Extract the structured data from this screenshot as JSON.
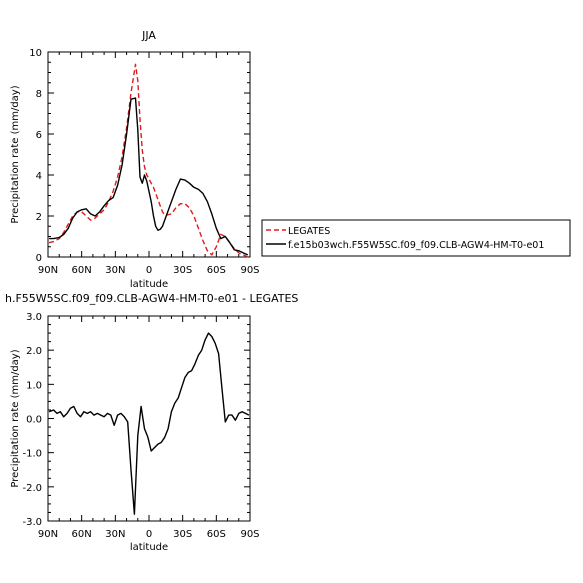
{
  "chart_data": [
    {
      "type": "line",
      "title": "JJA",
      "xlabel": "latitude",
      "ylabel": "Precipitation rate (mm/day)",
      "xlim": [
        90,
        -90
      ],
      "ylim": [
        0,
        10
      ],
      "x_ticks": [
        90,
        60,
        30,
        0,
        -30,
        -60,
        -90
      ],
      "x_tick_labels": [
        "90N",
        "60N",
        "30N",
        "0",
        "30S",
        "60S",
        "90S"
      ],
      "y_ticks": [
        0,
        2,
        4,
        6,
        8,
        10
      ],
      "y_tick_labels": [
        "0",
        "2",
        "4",
        "6",
        "8",
        "10"
      ],
      "legend_position": "right",
      "series": [
        {
          "name": "LEGATES",
          "style": "dashed",
          "color": "#e31a1c",
          "x": [
            89,
            85,
            80,
            76,
            72,
            68,
            64,
            60,
            56,
            52,
            48,
            44,
            40,
            36,
            32,
            28,
            24,
            20,
            16,
            12,
            10,
            8,
            6,
            4,
            2,
            0,
            -2,
            -4,
            -6,
            -8,
            -10,
            -12,
            -14,
            -16,
            -20,
            -24,
            -28,
            -32,
            -36,
            -40,
            -44,
            -48,
            -52,
            -56,
            -60,
            -64,
            -68,
            -72,
            -76,
            -80,
            -84,
            -88
          ],
          "y": [
            0.7,
            0.75,
            0.9,
            1.2,
            1.6,
            2.0,
            2.2,
            2.2,
            2.0,
            1.8,
            1.9,
            2.1,
            2.3,
            2.7,
            3.2,
            3.9,
            4.9,
            6.3,
            8.0,
            9.4,
            8.6,
            6.7,
            5.2,
            4.4,
            4.0,
            3.8,
            3.6,
            3.4,
            3.1,
            2.8,
            2.5,
            2.2,
            2.05,
            2.05,
            2.1,
            2.4,
            2.6,
            2.6,
            2.4,
            2.0,
            1.4,
            0.8,
            0.3,
            0.1,
            0.5,
            1.1,
            1.0,
            0.7,
            0.4,
            0.2,
            0.1,
            0.0
          ]
        },
        {
          "name": "f.e15b03wch.F55W5SC.f09_f09.CLB-AGW4-HM-T0-e01",
          "style": "solid",
          "color": "#000000",
          "x": [
            89,
            85,
            80,
            76,
            72,
            68,
            64,
            60,
            56,
            52,
            48,
            44,
            40,
            36,
            32,
            28,
            24,
            20,
            16,
            12,
            10,
            8,
            6,
            4,
            2,
            0,
            -2,
            -4,
            -6,
            -8,
            -10,
            -12,
            -14,
            -16,
            -20,
            -24,
            -28,
            -32,
            -36,
            -40,
            -44,
            -48,
            -52,
            -56,
            -60,
            -64,
            -68,
            -72,
            -76,
            -80,
            -84,
            -88
          ],
          "y": [
            0.9,
            0.9,
            0.95,
            1.1,
            1.4,
            1.9,
            2.2,
            2.3,
            2.35,
            2.1,
            2.0,
            2.2,
            2.5,
            2.75,
            2.9,
            3.5,
            4.5,
            6.0,
            7.7,
            7.75,
            6.2,
            3.9,
            3.6,
            4.0,
            3.7,
            3.2,
            2.7,
            2.0,
            1.5,
            1.3,
            1.35,
            1.5,
            1.8,
            2.1,
            2.7,
            3.3,
            3.8,
            3.75,
            3.6,
            3.4,
            3.3,
            3.1,
            2.7,
            2.1,
            1.4,
            0.9,
            1.0,
            0.7,
            0.35,
            0.3,
            0.2,
            0.1
          ]
        }
      ]
    },
    {
      "type": "line",
      "title": "h.F55W5SC.f09_f09.CLB-AGW4-HM-T0-e01 - LEGATES",
      "xlabel": "latitude",
      "ylabel": "Precipitation rate (mm/day)",
      "xlim": [
        90,
        -90
      ],
      "ylim": [
        -3,
        3
      ],
      "x_ticks": [
        90,
        60,
        30,
        0,
        -30,
        -60,
        -90
      ],
      "x_tick_labels": [
        "90N",
        "60N",
        "30N",
        "0",
        "30S",
        "60S",
        "90S"
      ],
      "y_ticks": [
        -3,
        -2,
        -1,
        0,
        1,
        2,
        3
      ],
      "y_tick_labels": [
        "-3.0",
        "-2.0",
        "-1.0",
        "0.0",
        "1.0",
        "2.0",
        "3.0"
      ],
      "series": [
        {
          "style": "solid",
          "color": "#000000",
          "x": [
            89,
            85,
            82,
            79,
            76,
            73,
            70,
            67,
            64,
            61,
            58,
            55,
            52,
            49,
            46,
            43,
            40,
            37,
            34,
            31,
            28,
            25,
            22,
            19,
            16,
            13,
            10,
            7,
            4,
            1,
            -2,
            -5,
            -8,
            -11,
            -14,
            -17,
            -20,
            -23,
            -26,
            -29,
            -32,
            -35,
            -38,
            -41,
            -44,
            -47,
            -50,
            -53,
            -56,
            -59,
            -62,
            -65,
            -68,
            -71,
            -74,
            -77,
            -80,
            -83,
            -86,
            -89
          ],
          "y": [
            0.2,
            0.25,
            0.15,
            0.2,
            0.05,
            0.15,
            0.3,
            0.35,
            0.15,
            0.05,
            0.2,
            0.15,
            0.2,
            0.1,
            0.15,
            0.1,
            0.05,
            0.15,
            0.1,
            -0.2,
            0.1,
            0.15,
            0.05,
            -0.1,
            -1.5,
            -2.8,
            -0.5,
            0.35,
            -0.3,
            -0.55,
            -0.95,
            -0.85,
            -0.75,
            -0.7,
            -0.55,
            -0.3,
            0.2,
            0.45,
            0.6,
            0.9,
            1.2,
            1.35,
            1.4,
            1.6,
            1.85,
            2.0,
            2.3,
            2.5,
            2.4,
            2.2,
            1.9,
            0.9,
            -0.1,
            0.1,
            0.1,
            -0.05,
            0.15,
            0.2,
            0.15,
            0.1
          ]
        }
      ]
    }
  ]
}
